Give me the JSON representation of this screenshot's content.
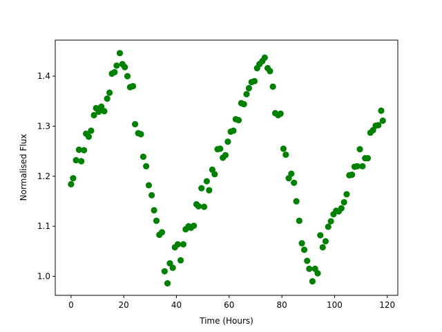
{
  "chart_data": {
    "type": "scatter",
    "title": "",
    "xlabel": "Time (Hours)",
    "ylabel": "Normalised Flux",
    "xlim": [
      -6,
      124
    ],
    "ylim": [
      0.962,
      1.472
    ],
    "xticks": [
      0,
      20,
      40,
      60,
      80,
      100,
      120
    ],
    "yticks": [
      1.0,
      1.1,
      1.2,
      1.3,
      1.4
    ],
    "xtick_labels": [
      "0",
      "20",
      "40",
      "60",
      "80",
      "100",
      "120"
    ],
    "ytick_labels": [
      "1.0",
      "1.1",
      "1.2",
      "1.3",
      "1.4"
    ],
    "grid": false,
    "marker_color": "#008000",
    "series": [
      {
        "x": [
          0.0,
          0.8,
          1.9,
          3.0,
          3.9,
          4.9,
          5.7,
          6.7,
          7.6,
          8.7,
          9.5,
          10.5,
          11.5,
          12.6,
          13.7,
          14.6,
          15.5,
          16.5,
          17.3,
          18.5,
          19.5,
          20.4,
          21.4,
          22.4,
          23.5,
          24.3,
          25.5,
          26.5,
          27.4,
          28.5,
          29.5,
          30.6,
          31.5,
          32.4,
          33.5,
          34.5,
          35.5,
          36.6,
          37.5,
          38.6,
          39.4,
          40.5,
          41.6,
          42.6,
          43.5,
          44.6,
          45.5,
          46.6,
          47.6,
          48.4,
          49.5,
          50.5,
          51.5,
          52.4,
          53.6,
          54.5,
          55.6,
          56.6,
          57.6,
          58.6,
          59.5,
          60.6,
          61.6,
          62.5,
          63.6,
          64.6,
          65.6,
          66.6,
          67.5,
          68.5,
          69.6,
          70.6,
          71.5,
          72.6,
          73.5,
          74.6,
          75.5,
          76.6,
          77.5,
          78.6,
          79.5,
          80.6,
          81.5,
          82.6,
          83.6,
          84.6,
          85.5,
          86.6,
          87.6,
          88.5,
          89.6,
          90.4,
          91.6,
          92.6,
          93.6,
          94.6,
          95.5,
          96.6,
          97.6,
          98.6,
          99.6,
          100.6,
          101.6,
          102.6,
          103.6,
          104.6,
          105.6,
          106.6,
          107.6,
          108.6,
          109.6,
          110.6,
          111.6,
          112.6,
          113.6,
          114.6,
          115.6,
          116.6,
          117.7,
          118.3
        ],
        "y": [
          1.184,
          1.196,
          1.232,
          1.253,
          1.23,
          1.252,
          1.285,
          1.279,
          1.291,
          1.322,
          1.336,
          1.329,
          1.339,
          1.33,
          1.355,
          1.367,
          1.405,
          1.408,
          1.421,
          1.446,
          1.424,
          1.418,
          1.4,
          1.378,
          1.38,
          1.304,
          1.286,
          1.284,
          1.239,
          1.22,
          1.182,
          1.162,
          1.132,
          1.111,
          1.083,
          1.088,
          1.01,
          0.986,
          1.026,
          1.017,
          1.058,
          1.064,
          1.032,
          1.064,
          1.094,
          1.1,
          1.097,
          1.101,
          1.144,
          1.14,
          1.176,
          1.139,
          1.19,
          1.172,
          1.213,
          1.204,
          1.254,
          1.255,
          1.237,
          1.242,
          1.269,
          1.289,
          1.291,
          1.314,
          1.312,
          1.346,
          1.344,
          1.364,
          1.376,
          1.388,
          1.39,
          1.416,
          1.424,
          1.43,
          1.437,
          1.416,
          1.41,
          1.379,
          1.326,
          1.322,
          1.325,
          1.255,
          1.243,
          1.196,
          1.205,
          1.187,
          1.15,
          1.111,
          1.066,
          1.053,
          1.031,
          1.015,
          0.99,
          1.015,
          1.006,
          1.082,
          1.058,
          1.07,
          1.099,
          1.11,
          1.124,
          1.131,
          1.13,
          1.136,
          1.148,
          1.164,
          1.202,
          1.203,
          1.219,
          1.22,
          1.254,
          1.22,
          1.236,
          1.236,
          1.287,
          1.292,
          1.301,
          1.302,
          1.331,
          1.311
        ]
      }
    ]
  }
}
